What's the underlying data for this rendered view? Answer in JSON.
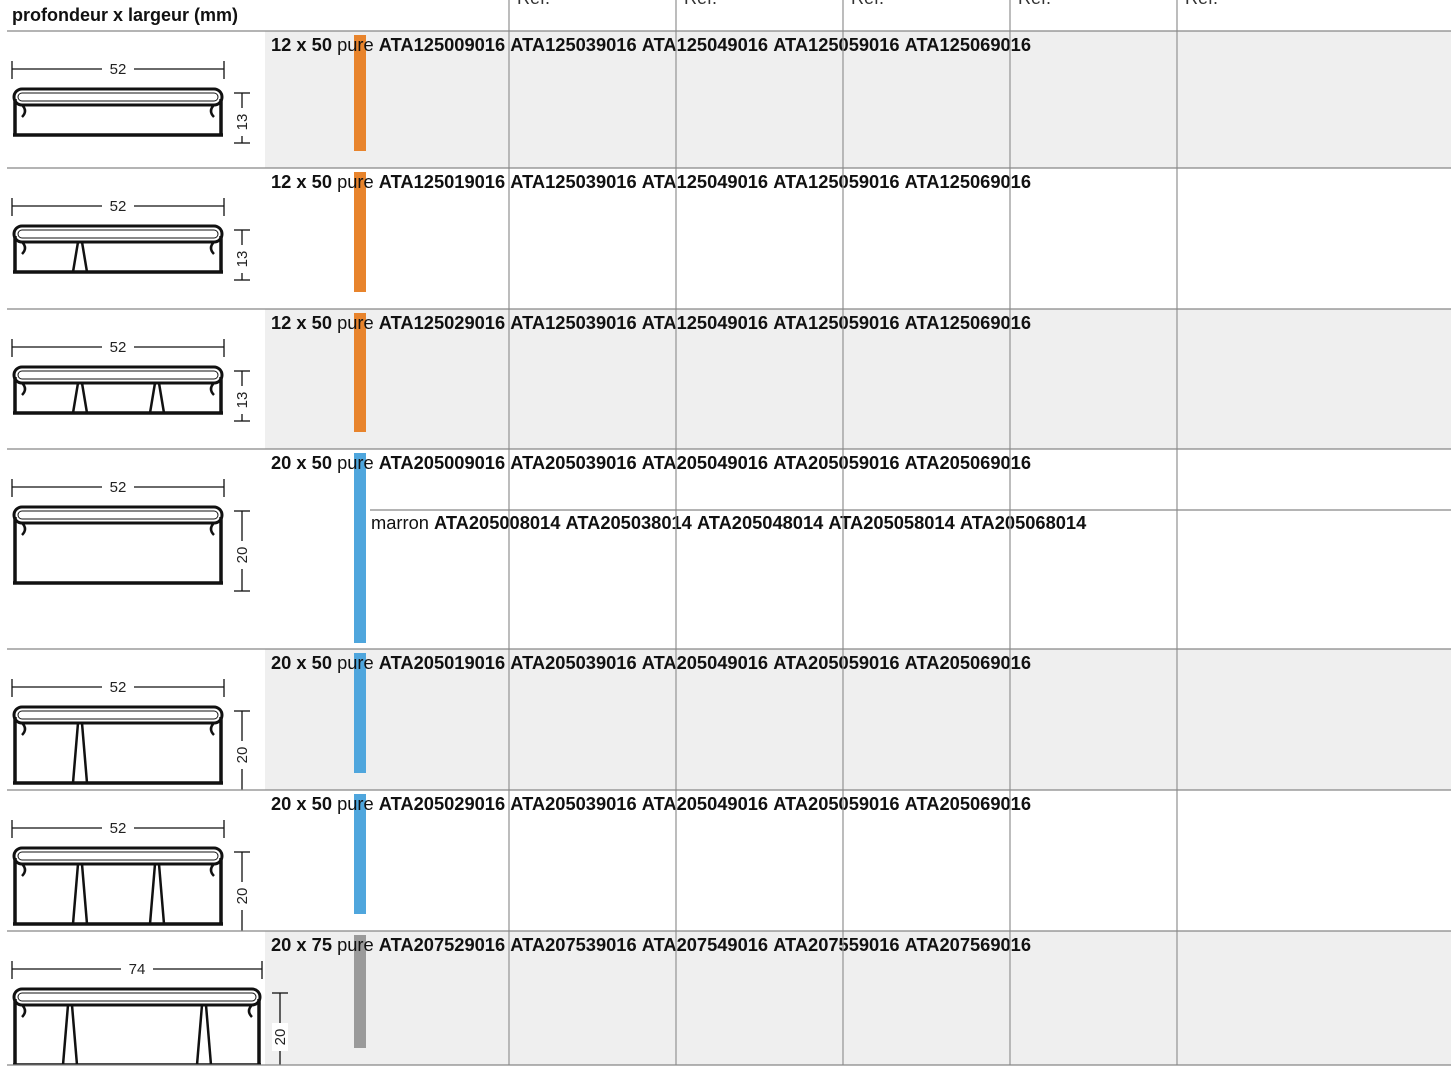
{
  "header": {
    "title": "profondeur x largeur (mm)",
    "columns": [
      "Réf.",
      "Réf.",
      "Réf.",
      "Réf.",
      "Réf."
    ]
  },
  "rows": [
    {
      "width": "52",
      "height": "13",
      "size": "12 x 50",
      "color": "#e8842c",
      "lines": [
        {
          "finish": "pure",
          "refs": [
            "ATA125009016",
            "ATA125039016",
            "ATA125049016",
            "ATA125059016",
            "ATA125069016"
          ]
        }
      ]
    },
    {
      "width": "52",
      "height": "13",
      "size": "12 x 50",
      "color": "#e8842c",
      "lines": [
        {
          "finish": "pure",
          "refs": [
            "ATA125019016",
            "ATA125039016",
            "ATA125049016",
            "ATA125059016",
            "ATA125069016"
          ]
        }
      ]
    },
    {
      "width": "52",
      "height": "13",
      "size": "12 x 50",
      "color": "#e8842c",
      "lines": [
        {
          "finish": "pure",
          "refs": [
            "ATA125029016",
            "ATA125039016",
            "ATA125049016",
            "ATA125059016",
            "ATA125069016"
          ]
        }
      ]
    },
    {
      "width": "52",
      "height": "20",
      "size": "20 x 50",
      "color": "#4fa6dd",
      "lines": [
        {
          "finish": "pure",
          "refs": [
            "ATA205009016",
            "ATA205039016",
            "ATA205049016",
            "ATA205059016",
            "ATA205069016"
          ]
        },
        {
          "finish": "marron",
          "refs": [
            "ATA205008014",
            "ATA205038014",
            "ATA205048014",
            "ATA205058014",
            "ATA205068014"
          ]
        }
      ]
    },
    {
      "width": "52",
      "height": "20",
      "size": "20 x 50",
      "color": "#4fa6dd",
      "lines": [
        {
          "finish": "pure",
          "refs": [
            "ATA205019016",
            "ATA205039016",
            "ATA205049016",
            "ATA205059016",
            "ATA205069016"
          ]
        }
      ]
    },
    {
      "width": "52",
      "height": "20",
      "size": "20 x 50",
      "color": "#4fa6dd",
      "lines": [
        {
          "finish": "pure",
          "refs": [
            "ATA205029016",
            "ATA205039016",
            "ATA205049016",
            "ATA205059016",
            "ATA205069016"
          ]
        }
      ]
    },
    {
      "width": "74",
      "height": "20",
      "size": "20 x 75",
      "color": "#9a9a9a",
      "lines": [
        {
          "finish": "pure",
          "refs": [
            "ATA207529016",
            "ATA207539016",
            "ATA207549016",
            "ATA207559016",
            "ATA207569016"
          ]
        }
      ]
    }
  ]
}
